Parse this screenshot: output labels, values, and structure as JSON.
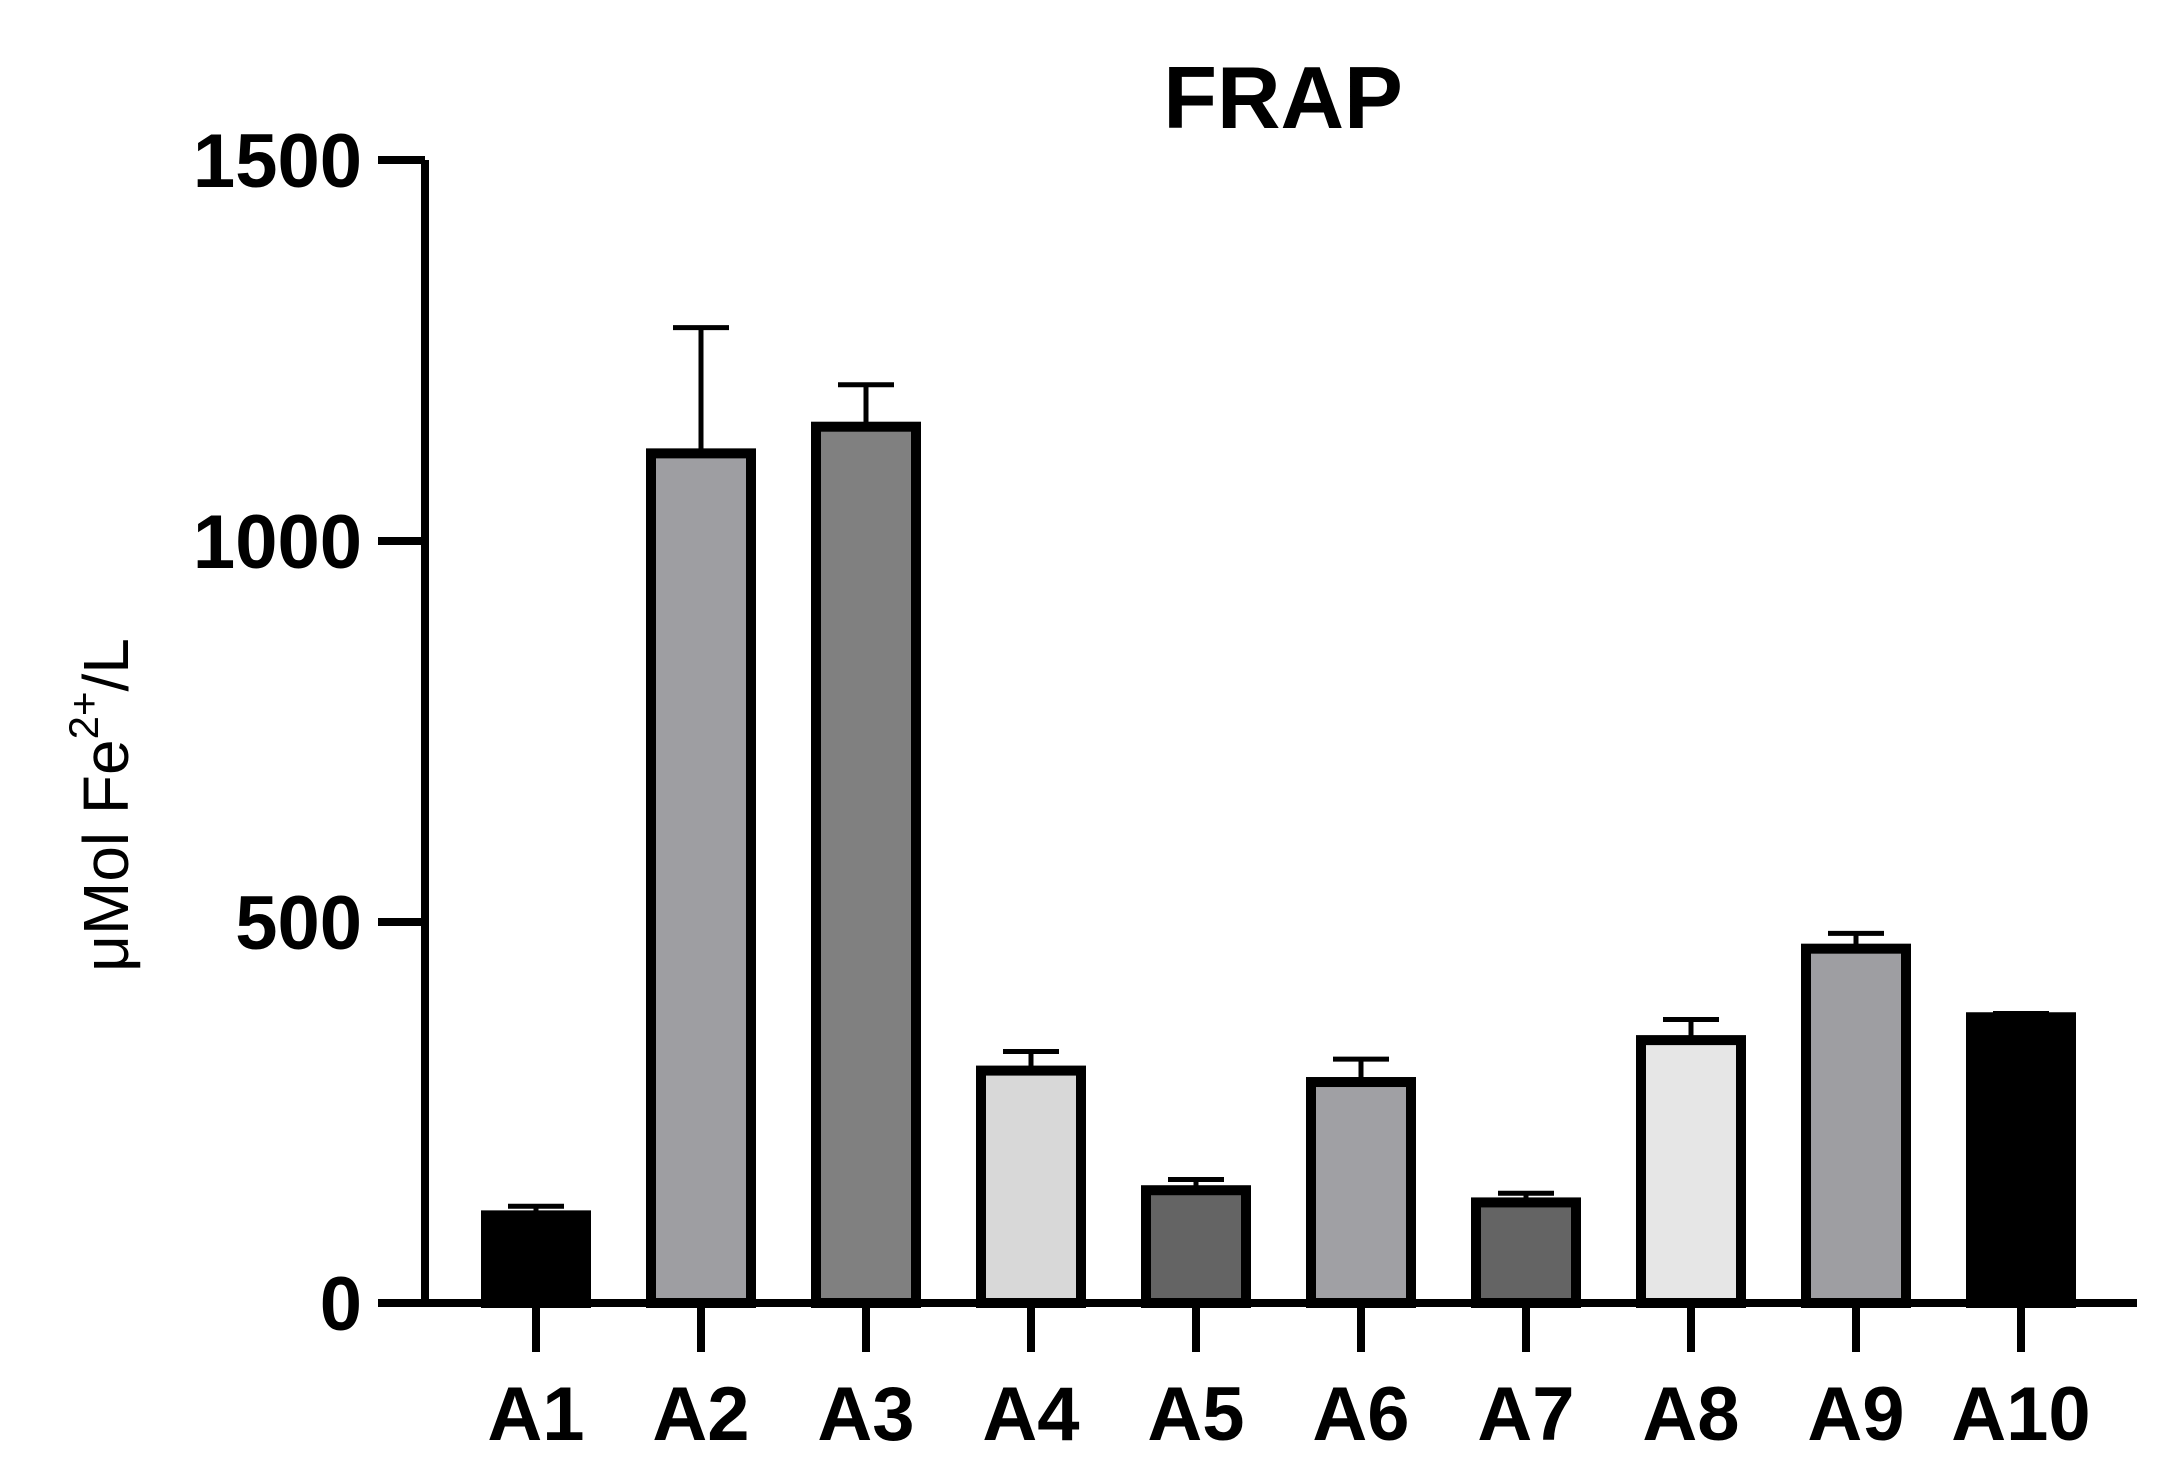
{
  "chart_data": {
    "type": "bar",
    "title": "FRAP",
    "xlabel": "",
    "ylabel": "μMol Fe2+/L",
    "ylabel_parts": {
      "base": "μMol Fe",
      "sup": "2+",
      "tail": "/L"
    },
    "ylim": [
      0,
      1500
    ],
    "yticks": [
      "0",
      "500",
      "1000",
      "1500"
    ],
    "grid": false,
    "legend": "none",
    "categories": [
      "A1",
      "A2",
      "A3",
      "A4",
      "A5",
      "A6",
      "A7",
      "A8",
      "A9",
      "A10"
    ],
    "values": [
      115,
      1115,
      1150,
      305,
      148,
      290,
      132,
      345,
      465,
      375
    ],
    "errors": [
      12,
      165,
      55,
      25,
      14,
      30,
      12,
      27,
      20,
      5
    ],
    "colors": [
      "#000000",
      "#9e9ea2",
      "#808080",
      "#d8d8d8",
      "#646464",
      "#a0a0a4",
      "#646464",
      "#e6e6e6",
      "#9e9ea2",
      "#000000"
    ]
  }
}
